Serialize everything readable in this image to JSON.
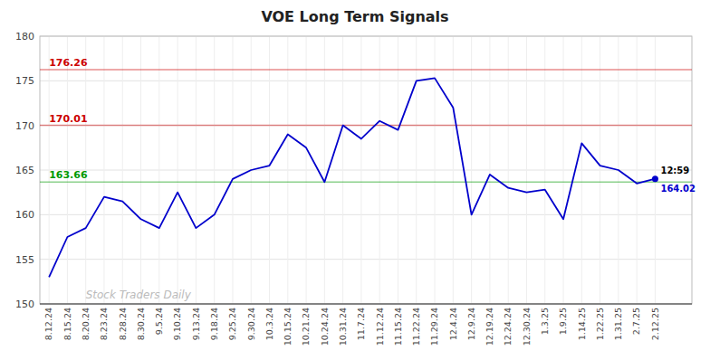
{
  "chart_data": {
    "type": "line",
    "title": "VOE Long Term Signals",
    "categories": [
      "8.12.24",
      "8.15.24",
      "8.20.24",
      "8.23.24",
      "8.28.24",
      "8.30.24",
      "9.5.24",
      "9.10.24",
      "9.13.24",
      "9.18.24",
      "9.25.24",
      "9.30.24",
      "10.3.24",
      "10.15.24",
      "10.21.24",
      "10.24.24",
      "10.31.24",
      "11.7.24",
      "11.12.24",
      "11.15.24",
      "11.22.24",
      "11.29.24",
      "12.4.24",
      "12.9.24",
      "12.19.24",
      "12.24.24",
      "12.30.24",
      "1.3.25",
      "1.9.25",
      "1.14.25",
      "1.22.25",
      "1.31.25",
      "2.7.25",
      "2.12.25"
    ],
    "values": [
      153.0,
      157.5,
      158.5,
      162.0,
      161.5,
      159.5,
      158.5,
      162.5,
      158.5,
      160.0,
      164.0,
      165.0,
      165.5,
      169.0,
      167.5,
      163.66,
      170.01,
      168.5,
      170.5,
      169.5,
      175.0,
      175.3,
      172.0,
      160.0,
      164.5,
      163.0,
      162.5,
      162.8,
      159.5,
      168.0,
      165.5,
      165.0,
      163.5,
      164.02
    ],
    "color": "#0000cc",
    "ylim": [
      150,
      180
    ],
    "yticks": [
      150,
      155,
      160,
      165,
      170,
      175,
      180
    ],
    "grid": true,
    "hlines": [
      {
        "value": 176.26,
        "label": "176.26",
        "color": "#cc0000"
      },
      {
        "value": 170.01,
        "label": "170.01",
        "color": "#cc0000"
      },
      {
        "value": 163.66,
        "label": "163.66",
        "color": "#009900"
      }
    ],
    "annotations": [
      {
        "text": "12:59",
        "color": "#000000"
      },
      {
        "text": "164.02",
        "color": "#0000cc"
      }
    ],
    "watermark": "Stock Traders Daily"
  }
}
